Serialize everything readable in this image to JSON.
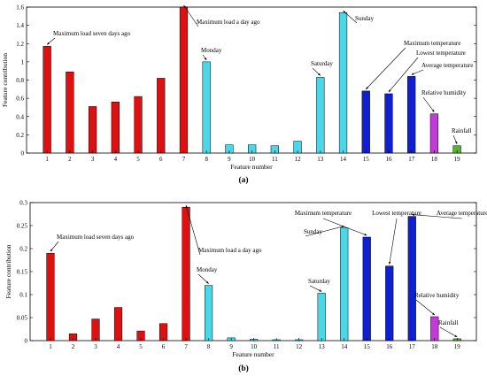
{
  "colors": {
    "red": "#dd1111",
    "cyan": "#4ad8e8",
    "blue": "#1020d0",
    "magenta": "#c23ad8",
    "green": "#4fb828",
    "axis": "#000000"
  },
  "chart_data": [
    {
      "type": "bar",
      "panel_label": "(a)",
      "xlabel": "Feature number",
      "ylabel": "Feature contribution",
      "categories": [
        "1",
        "2",
        "3",
        "4",
        "5",
        "6",
        "7",
        "8",
        "9",
        "10",
        "11",
        "12",
        "13",
        "14",
        "15",
        "16",
        "17",
        "18",
        "19"
      ],
      "values": [
        1.17,
        0.89,
        0.51,
        0.56,
        0.62,
        0.82,
        1.6,
        1.0,
        0.09,
        0.09,
        0.08,
        0.13,
        0.83,
        1.54,
        0.68,
        0.65,
        0.84,
        0.43,
        0.08
      ],
      "bar_colors": [
        "red",
        "red",
        "red",
        "red",
        "red",
        "red",
        "red",
        "cyan",
        "cyan",
        "cyan",
        "cyan",
        "cyan",
        "cyan",
        "cyan",
        "blue",
        "blue",
        "blue",
        "magenta",
        "green"
      ],
      "ylim": [
        0,
        1.6
      ],
      "yticks": [
        "0",
        "0.2",
        "0.4",
        "0.6",
        "0.8",
        "1",
        "1.2",
        "1.4",
        "1.6"
      ],
      "grid": false,
      "annotations": [
        {
          "text": "Maximum load seven days ago",
          "feature": 1
        },
        {
          "text": "Maximum load a day ago",
          "feature": 7
        },
        {
          "text": "Monday",
          "feature": 8
        },
        {
          "text": "Saturday",
          "feature": 13
        },
        {
          "text": "Sunday",
          "feature": 14
        },
        {
          "text": "Maximum temperature",
          "feature": 15
        },
        {
          "text": "Lowest temperature",
          "feature": 16
        },
        {
          "text": "Average temperature",
          "feature": 17
        },
        {
          "text": "Relative humidity",
          "feature": 18
        },
        {
          "text": "Rainfall",
          "feature": 19
        }
      ]
    },
    {
      "type": "bar",
      "panel_label": "(b)",
      "xlabel": "Feature number",
      "ylabel": "Feature contribution",
      "categories": [
        "1",
        "2",
        "3",
        "4",
        "5",
        "6",
        "7",
        "8",
        "9",
        "10",
        "11",
        "12",
        "13",
        "14",
        "15",
        "16",
        "17",
        "18",
        "19"
      ],
      "values": [
        0.19,
        0.015,
        0.047,
        0.072,
        0.021,
        0.037,
        0.29,
        0.12,
        0.006,
        0.003,
        0.002,
        0.002,
        0.103,
        0.245,
        0.225,
        0.162,
        0.27,
        0.052,
        0.004
      ],
      "bar_colors": [
        "red",
        "red",
        "red",
        "red",
        "red",
        "red",
        "red",
        "cyan",
        "cyan",
        "cyan",
        "cyan",
        "cyan",
        "cyan",
        "cyan",
        "blue",
        "blue",
        "blue",
        "magenta",
        "green"
      ],
      "ylim": [
        0,
        0.3
      ],
      "yticks": [
        "0",
        "0.05",
        "0.1",
        "0.15",
        "0.2",
        "0.25",
        "0.3"
      ],
      "grid": false,
      "annotations": [
        {
          "text": "Maximum load seven days ago",
          "feature": 1
        },
        {
          "text": "Maximum load a day ago",
          "feature": 7
        },
        {
          "text": "Monday",
          "feature": 8
        },
        {
          "text": "Saturday",
          "feature": 13
        },
        {
          "text": "Sunday",
          "feature": 14
        },
        {
          "text": "Maximum temperature",
          "feature": 15
        },
        {
          "text": "Lowest temperature",
          "feature": 16
        },
        {
          "text": "Average temperature",
          "feature": 17
        },
        {
          "text": "Relative humidity",
          "feature": 18
        },
        {
          "text": "Rainfall",
          "feature": 19
        }
      ]
    }
  ]
}
